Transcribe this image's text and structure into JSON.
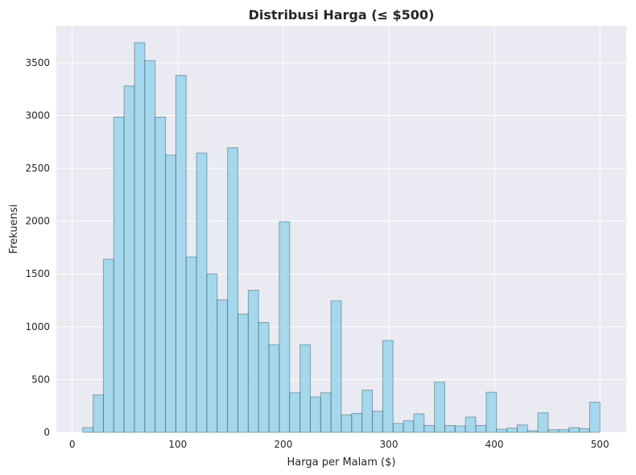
{
  "chart_data": {
    "type": "bar",
    "title": "Distribusi Harga (≤ $500)",
    "xlabel": "Harga per Malam ($)",
    "ylabel": "Frekuensi",
    "xlim": [
      -15,
      525
    ],
    "ylim": [
      0,
      3850
    ],
    "xticks": [
      0,
      100,
      200,
      300,
      400,
      500
    ],
    "yticks": [
      0,
      500,
      1000,
      1500,
      2000,
      2500,
      3000,
      3500
    ],
    "grid": true,
    "bin_start": 10,
    "bin_width": 9.8,
    "values": [
      45,
      355,
      1640,
      2985,
      3280,
      3690,
      3520,
      2985,
      2625,
      3380,
      1660,
      2645,
      1500,
      1255,
      2695,
      1120,
      1345,
      1040,
      830,
      1995,
      375,
      830,
      335,
      375,
      1245,
      165,
      180,
      400,
      200,
      870,
      85,
      110,
      175,
      65,
      475,
      65,
      60,
      145,
      65,
      380,
      30,
      40,
      70,
      15,
      185,
      25,
      25,
      45,
      35,
      285
    ],
    "colors": {
      "bar_fill": "#87ceeb",
      "bar_edge": "#2f4f4f",
      "plot_bg": "#eaeaf2",
      "grid": "#ffffff"
    }
  }
}
